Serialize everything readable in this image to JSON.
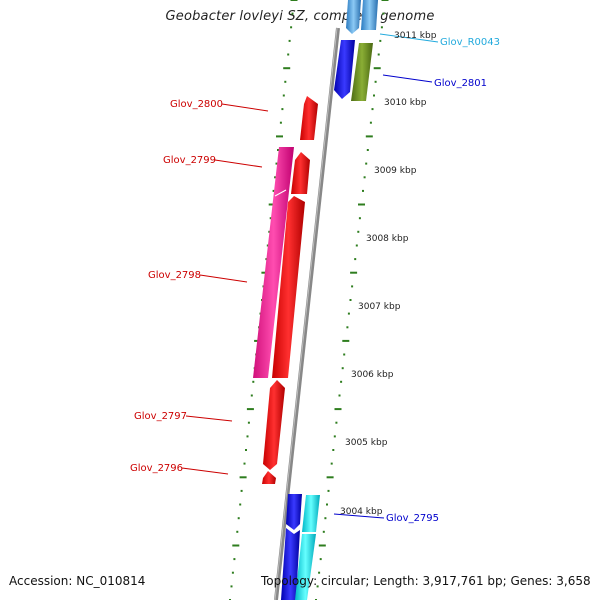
{
  "map": {
    "title": "Geobacter lovleyi SZ, complete genome",
    "accession": "Accession: NC_010814",
    "summary": "Topology: circular; Length: 3,917,761 bp; Genes: 3,658"
  },
  "ticks": [
    "3011 kbp",
    "3010 kbp",
    "3009 kbp",
    "3008 kbp",
    "3007 kbp",
    "3006 kbp",
    "3005 kbp",
    "3004 kbp"
  ],
  "gene_labels": {
    "r0043": "Glov_R0043",
    "g2801": "Glov_2801",
    "g2800": "Glov_2800",
    "g2799": "Glov_2799",
    "g2798": "Glov_2798",
    "g2797": "Glov_2797",
    "g2796": "Glov_2796",
    "g2795": "Glov_2795"
  },
  "colors": {
    "red": "#ff1a1a",
    "magenta": "#ff2a9d",
    "blue": "#1e1ef0",
    "olive": "#6b8e23",
    "cyan": "#00e5ee",
    "lightblue": "#49a9e8",
    "label_red": "#cc0000",
    "label_blue": "#0000cc",
    "label_cyan": "#22aadd",
    "tick_green": "#2e7d1e"
  }
}
